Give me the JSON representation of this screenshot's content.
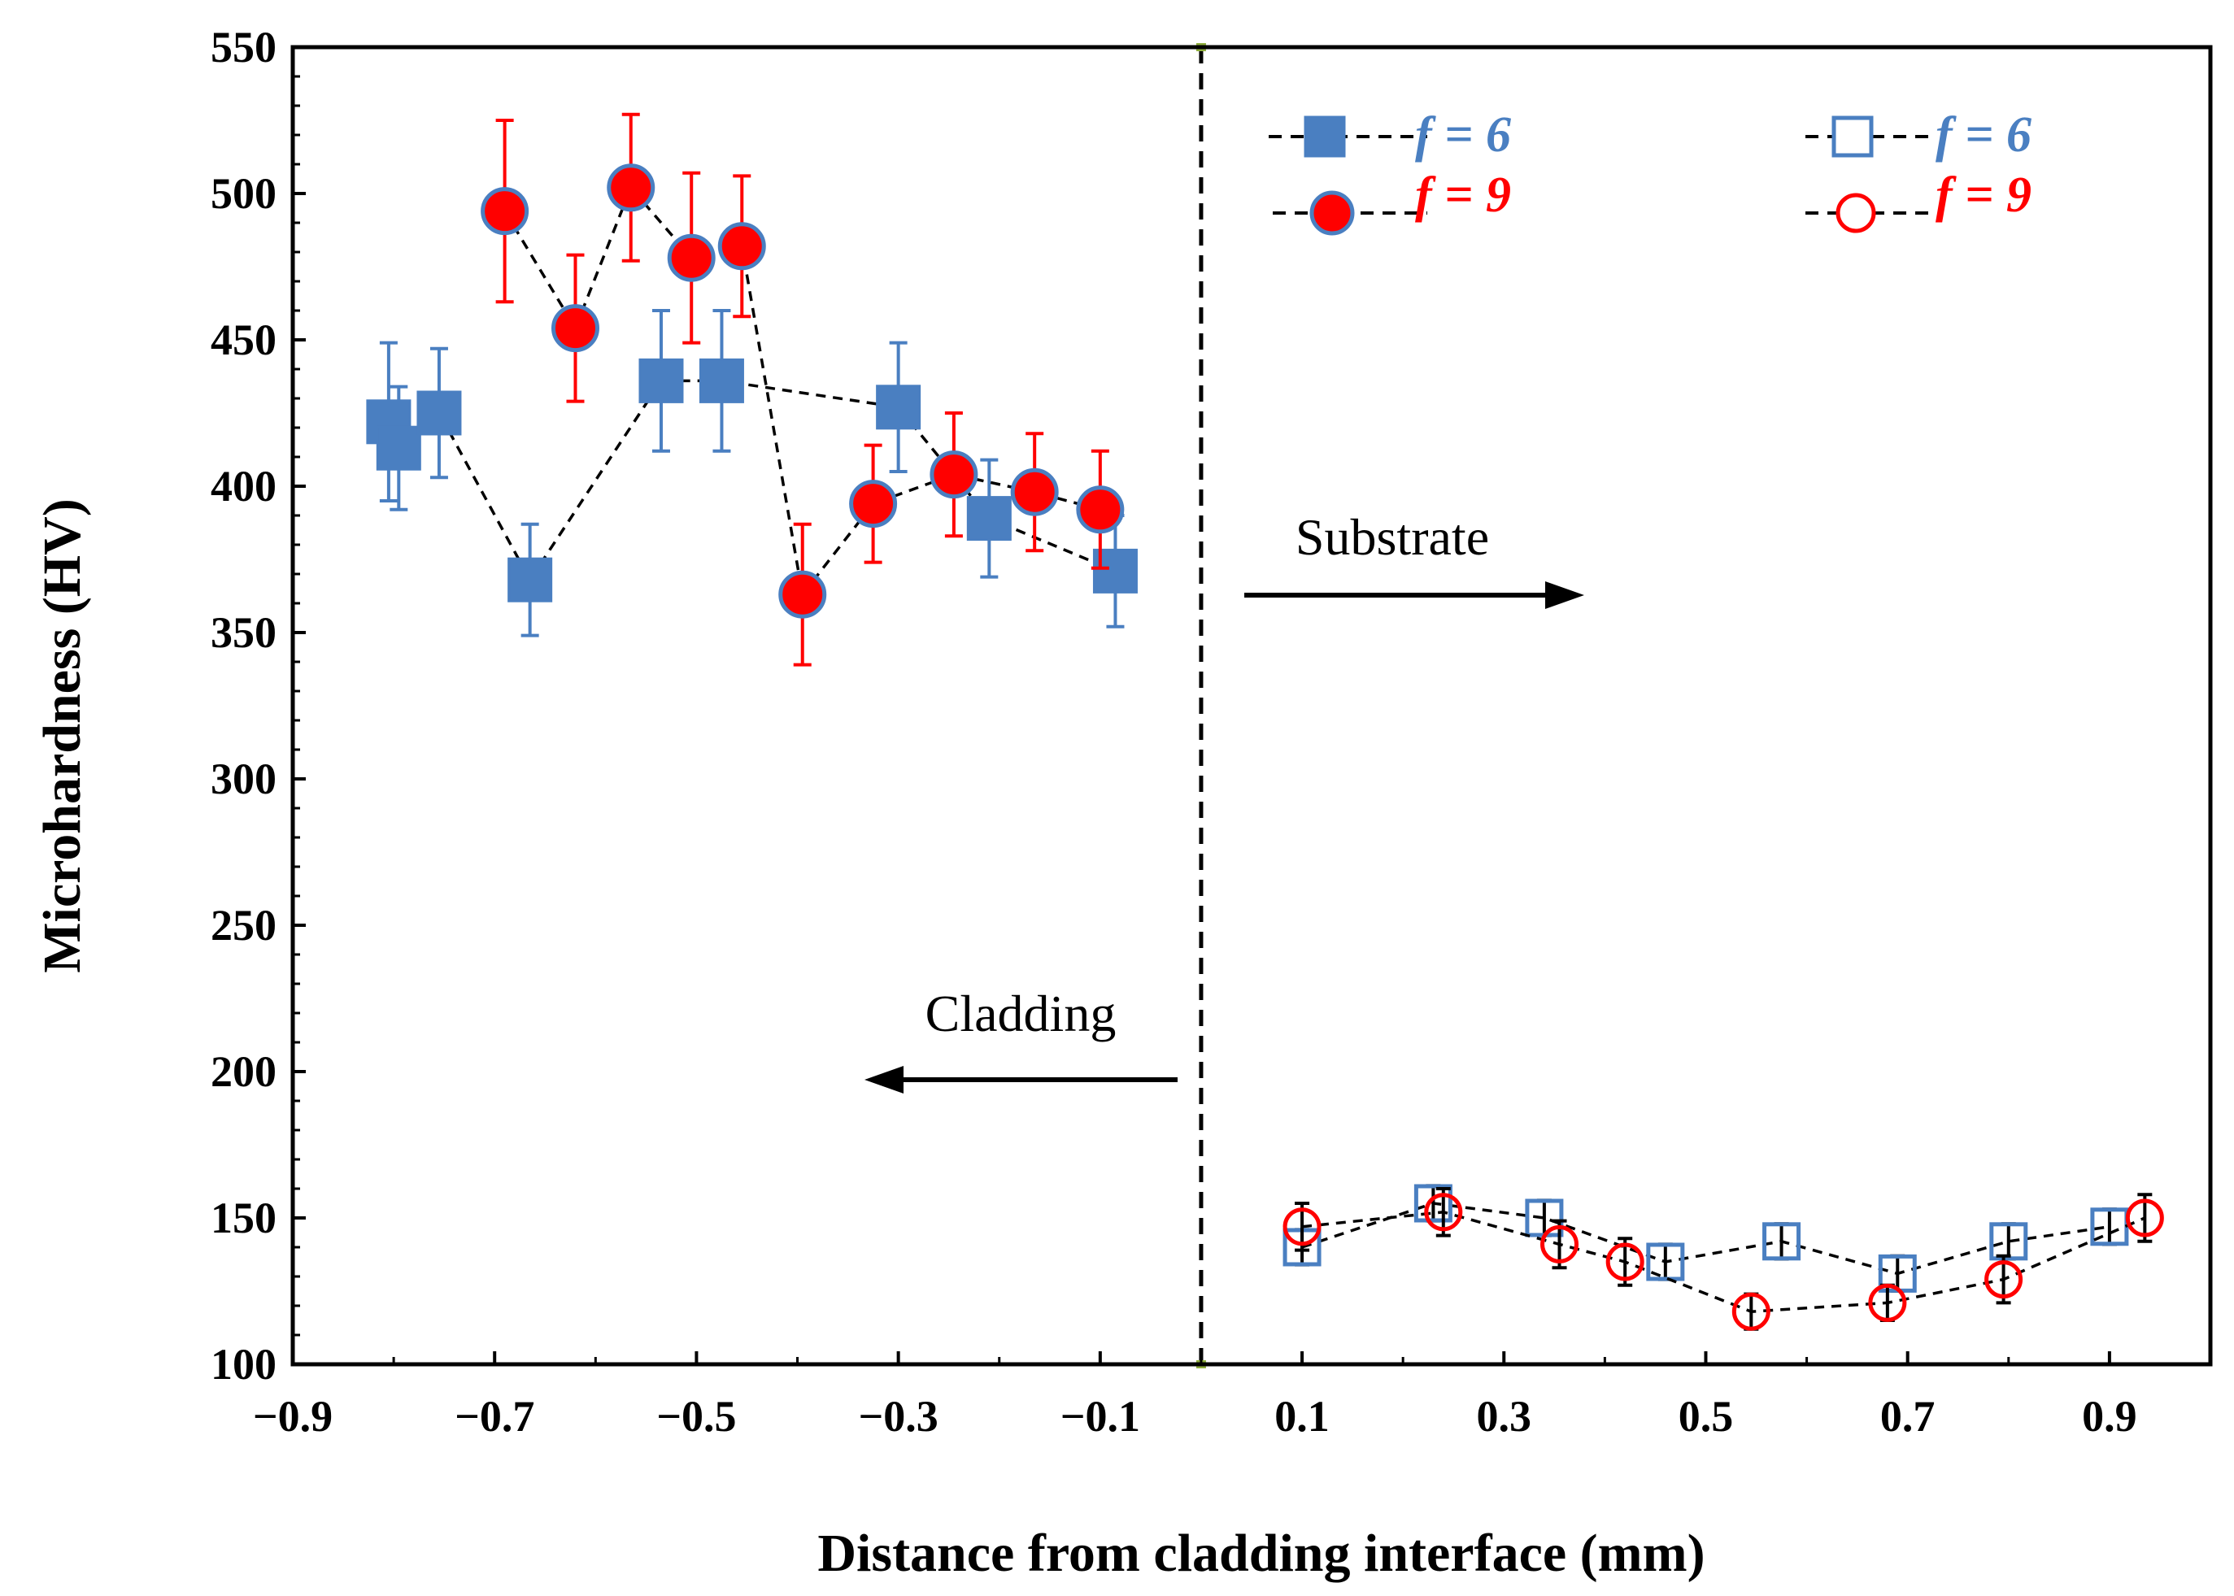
{
  "chart_data": {
    "type": "scatter",
    "title": "",
    "xlabel": "Distance from cladding interface (mm)",
    "ylabel": "Microhardness (HV)",
    "xlim": [
      -0.9,
      1.0
    ],
    "ylim": [
      100,
      550
    ],
    "x_ticks": [
      -0.9,
      -0.7,
      -0.5,
      -0.3,
      -0.1,
      0.1,
      0.3,
      0.5,
      0.7,
      0.9
    ],
    "x_tick_labels": [
      "−0.9",
      "−0.7",
      "−0.5",
      "−0.3",
      "−0.1",
      "0.1",
      "0.3",
      "0.5",
      "0.7",
      "0.9"
    ],
    "y_ticks": [
      100,
      150,
      200,
      250,
      300,
      350,
      400,
      450,
      500,
      550
    ],
    "y_tick_labels": [
      "100",
      "150",
      "200",
      "250",
      "300",
      "350",
      "400",
      "450",
      "500",
      "550"
    ],
    "grid": false,
    "legend_position": "top-right",
    "interface_line_x": 0.0,
    "annotations": [
      {
        "text": "Substrate",
        "arrow": "right"
      },
      {
        "text": "Cladding",
        "arrow": "left"
      }
    ],
    "colors": {
      "blue": "#4a7fc1",
      "red": "#ff0000"
    },
    "series": [
      {
        "name": "f = 6 (cladding)",
        "legend_label": "f = 6",
        "marker": "filled-square",
        "color": "#4a7fc1",
        "points": [
          {
            "x": -0.805,
            "y": 422,
            "err": 27
          },
          {
            "x": -0.795,
            "y": 413,
            "err": 21
          },
          {
            "x": -0.755,
            "y": 425,
            "err": 22
          },
          {
            "x": -0.665,
            "y": 368,
            "err": 19
          },
          {
            "x": -0.535,
            "y": 436,
            "err": 24
          },
          {
            "x": -0.475,
            "y": 436,
            "err": 24
          },
          {
            "x": -0.3,
            "y": 427,
            "err": 22
          },
          {
            "x": -0.21,
            "y": 389,
            "err": 20
          },
          {
            "x": -0.085,
            "y": 371,
            "err": 19
          }
        ]
      },
      {
        "name": "f = 9 (cladding)",
        "legend_label": "f = 9",
        "marker": "filled-circle",
        "color": "#ff0000",
        "points": [
          {
            "x": -0.69,
            "y": 494,
            "err": 31
          },
          {
            "x": -0.62,
            "y": 454,
            "err": 25
          },
          {
            "x": -0.565,
            "y": 502,
            "err": 25
          },
          {
            "x": -0.505,
            "y": 478,
            "err": 29
          },
          {
            "x": -0.455,
            "y": 482,
            "err": 24
          },
          {
            "x": -0.395,
            "y": 363,
            "err": 24
          },
          {
            "x": -0.325,
            "y": 394,
            "err": 20
          },
          {
            "x": -0.245,
            "y": 404,
            "err": 21
          },
          {
            "x": -0.165,
            "y": 398,
            "err": 20
          },
          {
            "x": -0.1,
            "y": 392,
            "err": 20
          }
        ]
      },
      {
        "name": "f = 6 (substrate)",
        "legend_label": "f = 6",
        "marker": "open-square",
        "color": "#4a7fc1",
        "points": [
          {
            "x": 0.1,
            "y": 140,
            "err": 6
          },
          {
            "x": 0.23,
            "y": 155,
            "err": 6
          },
          {
            "x": 0.34,
            "y": 150,
            "err": 6
          },
          {
            "x": 0.46,
            "y": 135,
            "err": 6
          },
          {
            "x": 0.575,
            "y": 142,
            "err": 6
          },
          {
            "x": 0.69,
            "y": 131,
            "err": 6
          },
          {
            "x": 0.8,
            "y": 142,
            "err": 6
          },
          {
            "x": 0.9,
            "y": 147,
            "err": 6
          }
        ]
      },
      {
        "name": "f = 9 (substrate)",
        "legend_label": "f = 9",
        "marker": "open-circle",
        "color": "#ff0000",
        "points": [
          {
            "x": 0.1,
            "y": 147,
            "err": 8
          },
          {
            "x": 0.24,
            "y": 152,
            "err": 8
          },
          {
            "x": 0.355,
            "y": 141,
            "err": 8
          },
          {
            "x": 0.42,
            "y": 135,
            "err": 8
          },
          {
            "x": 0.545,
            "y": 118,
            "err": 6
          },
          {
            "x": 0.68,
            "y": 121,
            "err": 6
          },
          {
            "x": 0.795,
            "y": 129,
            "err": 8
          },
          {
            "x": 0.935,
            "y": 150,
            "err": 8
          }
        ]
      }
    ]
  }
}
